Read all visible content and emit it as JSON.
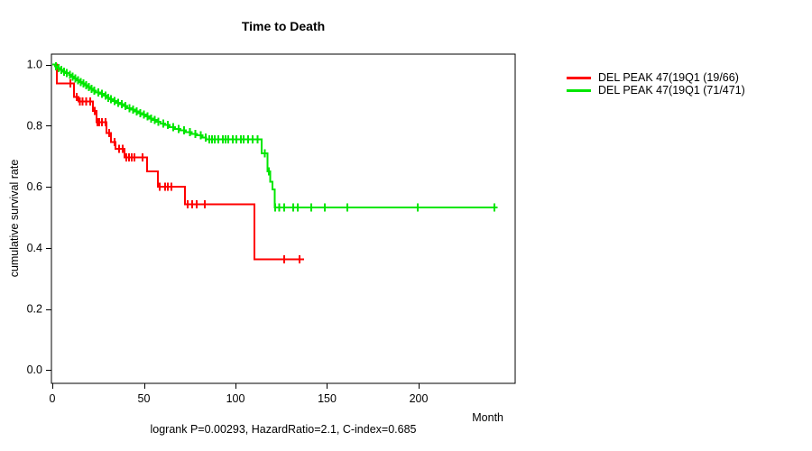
{
  "title": "Time to Death",
  "axes": {
    "x_label": "Month",
    "y_label": "cumulative survival rate"
  },
  "footer": {
    "stats": "logrank P=0.00293, HazardRatio=2.1, C-index=0.685"
  },
  "legend": {
    "items": [
      {
        "label": "DEL PEAK 47(19Q1 (19/66)",
        "color": "#ff0000"
      },
      {
        "label": "DEL PEAK 47(19Q1 (71/471)",
        "color": "#00e600"
      }
    ]
  },
  "chart_data": {
    "type": "line",
    "subtype": "kaplan_meier_step",
    "title": "Time to Death",
    "xlabel": "Month",
    "ylabel": "cumulative survival rate",
    "xlim": [
      0,
      253
    ],
    "ylim": [
      0,
      1
    ],
    "x_ticks": [
      0,
      50,
      100,
      150,
      200
    ],
    "y_ticks": [
      0.0,
      0.2,
      0.4,
      0.6,
      0.8,
      1.0
    ],
    "grid": false,
    "legend_position": "outside-right",
    "annotation": "logrank P=0.00293, HazardRatio=2.1, C-index=0.685",
    "series": [
      {
        "name": "DEL PEAK 47(19Q1 (19/66)",
        "color": "#ff0000",
        "events_ratio": "19/66",
        "end_month": 137.5,
        "steps": [
          [
            0,
            1.0
          ],
          [
            2.5,
            0.938
          ],
          [
            11.8,
            0.894
          ],
          [
            14.3,
            0.879
          ],
          [
            22.2,
            0.849
          ],
          [
            24.1,
            0.812
          ],
          [
            29.6,
            0.776
          ],
          [
            32,
            0.746
          ],
          [
            34.5,
            0.725
          ],
          [
            39.4,
            0.696
          ],
          [
            51.7,
            0.651
          ],
          [
            57.6,
            0.601
          ],
          [
            72.4,
            0.542
          ],
          [
            110.3,
            0.362
          ]
        ],
        "censor_ticks": [
          9.9,
          13.3,
          15,
          16.5,
          18.5,
          20.7,
          23.2,
          24.6,
          25.6,
          27.1,
          29.1,
          31,
          34,
          36.5,
          38.4,
          40.4,
          41.9,
          43.4,
          44.8,
          49.3,
          58.6,
          61.6,
          63,
          65,
          73.9,
          76.4,
          78.8,
          83.3,
          126.6,
          135
        ]
      },
      {
        "name": "DEL PEAK 47(19Q1 (71/471)",
        "color": "#00e600",
        "events_ratio": "71/471",
        "end_month": 243,
        "steps": [
          [
            0,
            1.0
          ],
          [
            1.5,
            0.994
          ],
          [
            3,
            0.989
          ],
          [
            4.5,
            0.983
          ],
          [
            6,
            0.977
          ],
          [
            7.5,
            0.972
          ],
          [
            9,
            0.966
          ],
          [
            10.5,
            0.96
          ],
          [
            12,
            0.955
          ],
          [
            13.5,
            0.949
          ],
          [
            15,
            0.943
          ],
          [
            16.5,
            0.938
          ],
          [
            18,
            0.932
          ],
          [
            19.5,
            0.926
          ],
          [
            21,
            0.921
          ],
          [
            22.5,
            0.915
          ],
          [
            24,
            0.909
          ],
          [
            26,
            0.904
          ],
          [
            28,
            0.898
          ],
          [
            30,
            0.892
          ],
          [
            31.5,
            0.887
          ],
          [
            33,
            0.881
          ],
          [
            35,
            0.875
          ],
          [
            37,
            0.87
          ],
          [
            39,
            0.864
          ],
          [
            41,
            0.858
          ],
          [
            43,
            0.853
          ],
          [
            45,
            0.847
          ],
          [
            47,
            0.841
          ],
          [
            49,
            0.836
          ],
          [
            51,
            0.83
          ],
          [
            53,
            0.824
          ],
          [
            55,
            0.819
          ],
          [
            57,
            0.813
          ],
          [
            59,
            0.807
          ],
          [
            61.5,
            0.802
          ],
          [
            64,
            0.796
          ],
          [
            67,
            0.79
          ],
          [
            70,
            0.785
          ],
          [
            73,
            0.779
          ],
          [
            76,
            0.773
          ],
          [
            79,
            0.768
          ],
          [
            82,
            0.762
          ],
          [
            84,
            0.755
          ],
          [
            114.3,
            0.71
          ],
          [
            117.5,
            0.651
          ],
          [
            119,
            0.616
          ],
          [
            120.3,
            0.592
          ],
          [
            121.5,
            0.533
          ]
        ],
        "censor_ticks": [
          2,
          3.5,
          5,
          6.5,
          8,
          9.5,
          11,
          12.5,
          14,
          15.5,
          17,
          18.5,
          20,
          21.5,
          23,
          25,
          27,
          29,
          30.5,
          32,
          34,
          36,
          38,
          40,
          42,
          44,
          46,
          48,
          50,
          52,
          54,
          56,
          58,
          60.5,
          63,
          66,
          69,
          72,
          75,
          78,
          81,
          83.7,
          85.7,
          87.2,
          88.7,
          90.6,
          93.1,
          94.6,
          96.1,
          98.5,
          100.5,
          103,
          104.4,
          106.9,
          109.4,
          112,
          116,
          118.2,
          121.7,
          124,
          126.6,
          131.5,
          134,
          141.4,
          148.8,
          161,
          199.5,
          241.4
        ]
      }
    ]
  }
}
